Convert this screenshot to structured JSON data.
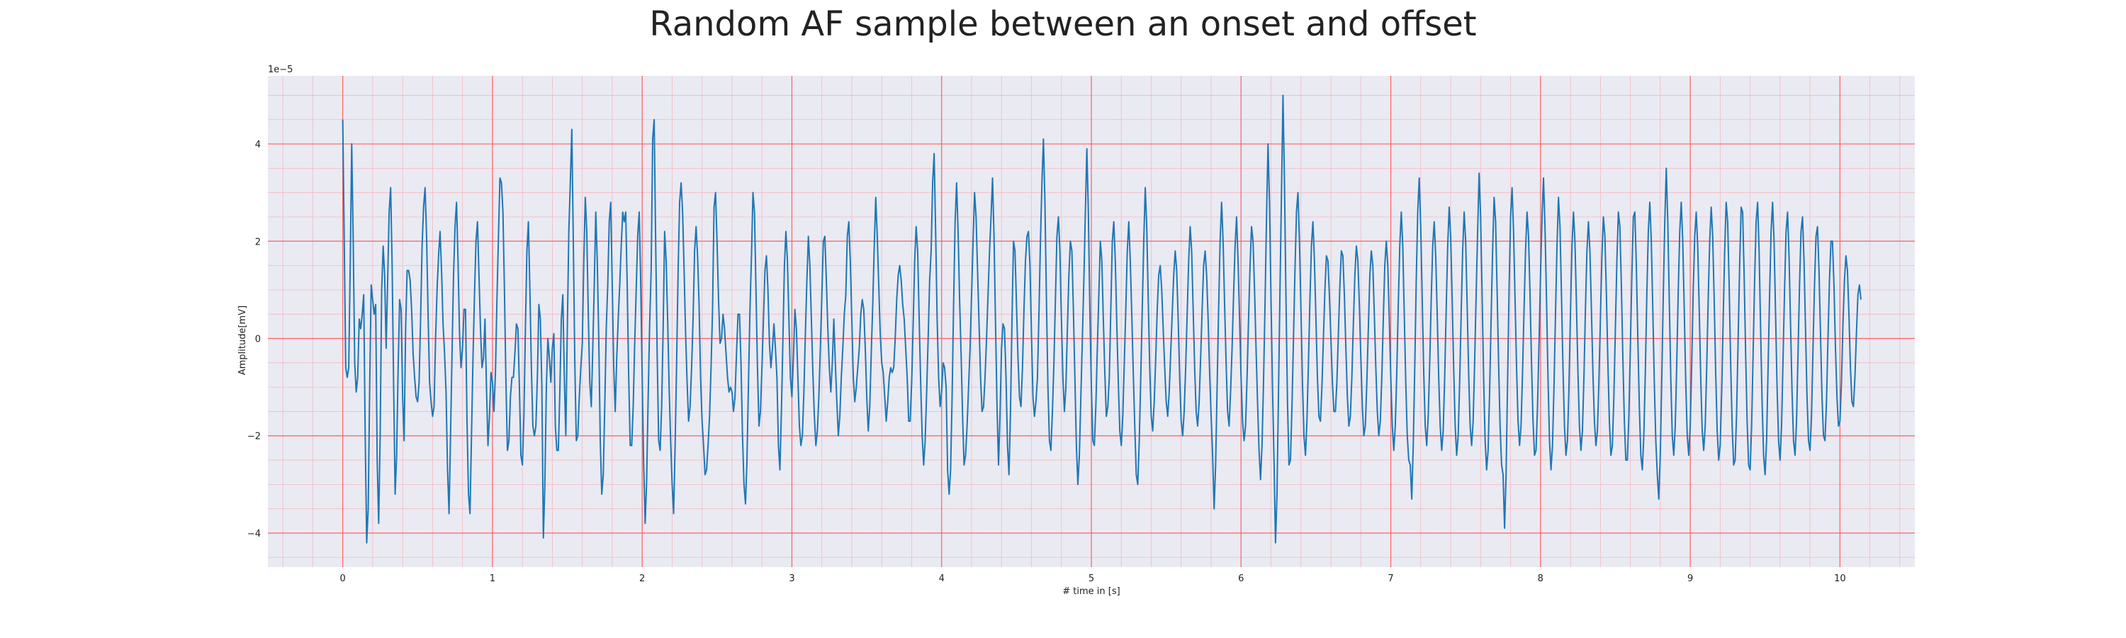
{
  "chart_data": {
    "type": "line",
    "title": "Random AF sample between an onset and offset",
    "xlabel": "# time in [s]",
    "ylabel": "Amplitude[mV]",
    "y_offset_label": "1e−5",
    "xlim": [
      -0.5,
      10.5
    ],
    "ylim": [
      -4.7,
      5.4
    ],
    "x_ticks": [
      0,
      1,
      2,
      3,
      4,
      5,
      6,
      7,
      8,
      9,
      10
    ],
    "x_tick_labels": [
      "0",
      "1",
      "2",
      "3",
      "4",
      "5",
      "6",
      "7",
      "8",
      "9",
      "10"
    ],
    "y_ticks": [
      -4,
      -2,
      0,
      2,
      4
    ],
    "y_tick_labels": [
      "−4",
      "−2",
      "0",
      "2",
      "4"
    ],
    "grid": true,
    "minor_grid": true,
    "colors": {
      "background": "#eaeaf2",
      "line": "#1f77b4",
      "major_grid": "#ff6060",
      "minor_grid": "#f4b8c0"
    },
    "series": [
      {
        "x_start": 0.0,
        "x_step": 0.01,
        "values": [
          4.5,
          2.0,
          -0.6,
          -0.8,
          -0.6,
          1.5,
          4.0,
          2.0,
          -0.5,
          -1.1,
          -0.8,
          0.4,
          0.2,
          0.5,
          0.9,
          -2.0,
          -4.2,
          -3.5,
          -1.0,
          1.1,
          0.8,
          0.5,
          0.7,
          -2.5,
          -3.8,
          -2.0,
          1.0,
          1.9,
          1.3,
          -0.2,
          1.2,
          2.6,
          3.1,
          1.5,
          -1.0,
          -3.2,
          -2.4,
          -0.6,
          0.8,
          0.6,
          -1.2,
          -2.1,
          0.2,
          1.4,
          1.4,
          1.2,
          0.6,
          -0.3,
          -0.8,
          -1.2,
          -1.3,
          -0.9,
          0.4,
          1.9,
          2.7,
          3.1,
          2.1,
          0.5,
          -0.9,
          -1.3,
          -1.6,
          -1.4,
          0.0,
          1.0,
          1.7,
          2.2,
          1.4,
          0.3,
          -0.3,
          -1.1,
          -2.7,
          -3.6,
          -2.0,
          -0.3,
          1.3,
          2.3,
          2.8,
          1.6,
          0.1,
          -0.6,
          -0.2,
          0.6,
          0.6,
          -1.7,
          -3.2,
          -3.6,
          -2.0,
          -0.4,
          0.9,
          2.0,
          2.4,
          1.3,
          0.2,
          -0.6,
          -0.4,
          0.4,
          -1.0,
          -2.2,
          -1.6,
          -0.7,
          -0.9,
          -1.5,
          -0.7,
          0.8,
          2.1,
          3.3,
          3.2,
          2.6,
          1.0,
          -0.9,
          -2.3,
          -2.1,
          -1.2,
          -0.8,
          -0.8,
          -0.3,
          0.3,
          0.2,
          -1.0,
          -2.4,
          -2.6,
          -1.6,
          0.2,
          1.8,
          2.4,
          1.0,
          -0.6,
          -1.8,
          -2.0,
          -1.8,
          -0.8,
          0.7,
          0.4,
          -1.0,
          -4.1,
          -3.0,
          -1.0,
          0.0,
          -0.4,
          -0.9,
          -0.2,
          0.1,
          -1.8,
          -2.3,
          -2.3,
          -1.1,
          0.4,
          0.9,
          -0.8,
          -2.0,
          0.2,
          2.2,
          3.2,
          4.3,
          2.0,
          -0.5,
          -2.1,
          -2.0,
          -1.2,
          -0.6,
          -0.1,
          1.6,
          2.9,
          2.2,
          0.5,
          -0.9,
          -1.4,
          -0.2,
          1.1,
          2.6,
          1.6,
          0.0,
          -2.1,
          -3.2,
          -2.8,
          -1.4,
          0.2,
          1.1,
          2.4,
          2.8,
          1.1,
          -0.6,
          -1.5,
          -0.4,
          0.4,
          1.1,
          1.9,
          2.6,
          2.4,
          2.6,
          1.1,
          -0.8,
          -2.2,
          -2.2,
          -1.4,
          -0.1,
          1.0,
          2.1,
          2.6,
          1.2,
          -0.8,
          -2.6,
          -3.8,
          -2.9,
          -1.2,
          0.3,
          1.4,
          4.1,
          4.5,
          2.0,
          -0.3,
          -2.1,
          -2.3,
          -1.4,
          0.2,
          2.2,
          1.6,
          0.4,
          -1.0,
          -2.1,
          -3.0,
          -3.6,
          -2.2,
          -0.5,
          1.4,
          2.8,
          3.2,
          2.6,
          1.4,
          0.1,
          -0.9,
          -1.7,
          -1.4,
          -0.6,
          0.4,
          1.8,
          2.3,
          1.7,
          0.7,
          -0.8,
          -1.7,
          -2.2,
          -2.8,
          -2.7,
          -2.2,
          -1.6,
          -0.6,
          0.6,
          2.7,
          3.0,
          2.0,
          0.8,
          -0.1,
          0.0,
          0.5,
          0.2,
          -0.3,
          -0.8,
          -1.1,
          -1.0,
          -1.1,
          -1.5,
          -1.2,
          -0.3,
          0.5,
          0.5,
          -0.5,
          -2.0,
          -3.0,
          -3.4,
          -2.5,
          -0.9,
          0.6,
          1.7,
          3.0,
          2.6,
          1.0,
          -0.6,
          -1.8,
          -1.5,
          -0.6,
          0.4,
          1.4,
          1.7,
          1.0,
          -0.1,
          -0.6,
          -0.2,
          0.3,
          -0.2,
          -0.8,
          -2.2,
          -2.7,
          -1.5,
          0.0,
          1.5,
          2.2,
          1.6,
          0.4,
          -0.8,
          -1.2,
          -0.4,
          0.6,
          0.2,
          -0.8,
          -1.8,
          -2.2,
          -2.0,
          -1.1,
          0.1,
          1.2,
          2.1,
          1.5,
          0.4,
          -0.7,
          -1.6,
          -2.2,
          -1.9,
          -1.2,
          -0.2,
          0.9,
          2.0,
          2.1,
          1.2,
          0.2,
          -0.6,
          -1.1,
          -0.5,
          0.4,
          -0.5,
          -1.3,
          -2.0,
          -1.6,
          -0.8,
          -0.2,
          0.5,
          0.9,
          2.1,
          2.4,
          1.6,
          0.4,
          -0.8,
          -1.3,
          -1.0,
          -0.6,
          -0.2,
          0.5,
          0.8,
          0.6,
          -0.2,
          -1.2,
          -1.9,
          -1.4,
          -0.3,
          0.7,
          1.9,
          2.9,
          2.1,
          1.1,
          0.1,
          -0.5,
          -0.7,
          -1.2,
          -1.7,
          -1.3,
          -0.8,
          -0.6,
          -0.7,
          -0.6,
          0.0,
          0.8,
          1.3,
          1.5,
          1.2,
          0.7,
          0.4,
          -0.2,
          -0.8,
          -1.7,
          -1.7,
          -0.9,
          0.3,
          1.6,
          2.3,
          1.8,
          0.4,
          -0.9,
          -2.0,
          -2.6,
          -2.1,
          -1.1,
          0.0,
          1.2,
          1.8,
          3.2,
          3.8,
          2.2,
          0.4,
          -0.8,
          -1.4,
          -1.1,
          -0.5,
          -0.6,
          -1.0,
          -2.7,
          -3.2,
          -2.7,
          -1.2,
          0.7,
          2.4,
          3.2,
          2.2,
          0.8,
          -0.3,
          -1.6,
          -2.6,
          -2.4,
          -1.8,
          -1.0,
          -0.2,
          0.9,
          2.0,
          3.0,
          2.5,
          1.4,
          0.3,
          -0.8,
          -1.5,
          -1.4,
          -0.8,
          0.0,
          0.9,
          1.8,
          2.5,
          3.3,
          2.1,
          0.3,
          -1.4,
          -2.6,
          -1.6,
          -0.2,
          0.3,
          0.2,
          -0.8,
          -2.2,
          -2.8,
          -1.5,
          0.4,
          2.0,
          1.8,
          0.7,
          -0.4,
          -1.2,
          -1.4,
          -0.6,
          0.6,
          1.6,
          2.1,
          2.2,
          1.5,
          0.1,
          -1.2,
          -1.6,
          -1.3,
          -0.8,
          0.5,
          2.0,
          3.2,
          4.1,
          2.8,
          0.8,
          -1.0,
          -2.1,
          -2.3,
          -1.5,
          -0.5,
          0.8,
          2.1,
          2.5,
          1.8,
          0.4,
          -0.8,
          -1.5,
          -1.0,
          0.2,
          1.3,
          2.0,
          1.8,
          0.6,
          -0.8,
          -2.2,
          -3.0,
          -2.4,
          -1.2,
          0.0,
          1.2,
          2.6,
          3.9,
          2.6,
          0.6,
          -1.0,
          -2.1,
          -2.2,
          -1.4,
          -0.2,
          0.9,
          2.0,
          1.6,
          0.4,
          -0.7,
          -1.6,
          -1.4,
          -0.8,
          0.6,
          2.0,
          2.4,
          1.6,
          0.3,
          -0.9,
          -1.9,
          -2.2,
          -1.6,
          -0.5,
          0.6,
          1.8,
          2.4,
          1.6,
          0.5,
          -0.7,
          -1.8,
          -2.8,
          -3.0,
          -2.1,
          -0.8,
          0.6,
          2.0,
          3.1,
          2.3,
          0.8,
          -0.6,
          -1.6,
          -1.9,
          -1.3,
          -0.4,
          0.6,
          1.3,
          1.5,
          1.0,
          0.2,
          -0.6,
          -1.3,
          -1.6,
          -1.1,
          -0.3,
          0.5,
          1.3,
          1.8,
          1.4,
          0.4,
          -0.8,
          -1.7,
          -2.0,
          -1.5,
          -0.6,
          0.5,
          1.6,
          2.3,
          1.8,
          0.6,
          -0.6,
          -1.5,
          -1.8,
          -1.3,
          -0.4,
          0.6,
          1.5,
          1.8,
          1.3,
          0.4,
          -0.7,
          -1.6,
          -2.4,
          -3.5,
          -2.6,
          -1.0,
          0.6,
          2.0,
          2.8,
          2.0,
          0.7,
          -0.5,
          -1.5,
          -1.8,
          -1.1,
          -0.2,
          0.9,
          1.9,
          2.5,
          1.6,
          0.4,
          -0.8,
          -1.7,
          -2.1,
          -1.8,
          -0.8,
          0.4,
          1.5,
          2.3,
          2.0,
          1.0,
          -0.2,
          -1.3,
          -2.3,
          -2.9,
          -2.2,
          -0.9,
          0.7,
          2.5,
          4.0,
          2.8,
          0.8,
          -1.0,
          -2.5,
          -4.2,
          -3.2,
          -1.1,
          1.0,
          3.0,
          5.0,
          3.2,
          0.8,
          -1.3,
          -2.6,
          -2.5,
          -1.4,
          0.0,
          1.4,
          2.6,
          3.0,
          2.0,
          0.6,
          -0.9,
          -2.0,
          -2.4,
          -1.7,
          -0.5,
          0.8,
          1.9,
          2.4,
          1.6,
          0.4,
          -0.8,
          -1.6,
          -1.7,
          -1.0,
          0.0,
          1.0,
          1.7,
          1.6,
          0.9,
          0.0,
          -0.9,
          -1.5,
          -1.5,
          -0.9,
          0.1,
          1.1,
          1.8,
          1.7,
          0.9,
          -0.2,
          -1.2,
          -1.8,
          -1.6,
          -0.8,
          0.3,
          1.3,
          1.9,
          1.6,
          0.7,
          -0.4,
          -1.4,
          -2.0,
          -1.8,
          -0.9,
          0.2,
          1.3,
          1.8,
          1.5,
          0.5,
          -0.6,
          -1.5,
          -2.0,
          -1.7,
          -0.8,
          0.4,
          1.5,
          2.0,
          1.5,
          0.4,
          -0.8,
          -1.8,
          -2.3,
          -1.8,
          -0.7,
          0.7,
          1.9,
          2.6,
          1.9,
          0.5,
          -0.9,
          -2.0,
          -2.5,
          -2.6,
          -3.3,
          -2.2,
          -0.6,
          1.2,
          2.6,
          3.3,
          2.3,
          0.8,
          -0.7,
          -1.8,
          -2.2,
          -1.6,
          -0.5,
          0.8,
          1.9,
          2.4,
          1.7,
          0.5,
          -0.8,
          -1.8,
          -2.3,
          -1.9,
          -0.8,
          0.6,
          1.9,
          2.7,
          2.1,
          0.8,
          -0.6,
          -1.8,
          -2.4,
          -2.0,
          -0.9,
          0.5,
          1.8,
          2.6,
          2.0,
          0.7,
          -0.7,
          -1.8,
          -2.2,
          -1.7,
          -0.5,
          0.9,
          2.2,
          3.4,
          2.5,
          0.9,
          -0.8,
          -2.1,
          -2.7,
          -2.3,
          -1.1,
          0.4,
          1.8,
          2.9,
          2.4,
          1.0,
          -0.5,
          -1.8,
          -2.6,
          -2.8,
          -3.9,
          -2.8,
          -0.9,
          1.0,
          2.5,
          3.1,
          2.2,
          0.8,
          -0.6,
          -1.7,
          -2.2,
          -1.8,
          -0.7,
          0.6,
          1.8,
          2.6,
          2.1,
          0.9,
          -0.5,
          -1.7,
          -2.4,
          -2.3,
          -1.4,
          -0.1,
          1.3,
          2.5,
          3.3,
          2.3,
          0.8,
          -0.8,
          -2.1,
          -2.7,
          -2.2,
          -1.0,
          0.5,
          1.9,
          2.9,
          2.3,
          0.9,
          -0.6,
          -1.8,
          -2.4,
          -2.1,
          -1.0,
          0.5,
          1.9,
          2.6,
          2.0,
          0.7,
          -0.7,
          -1.8,
          -2.3,
          -1.9,
          -0.8,
          0.6,
          1.8,
          2.4,
          1.8,
          0.6,
          -0.7,
          -1.7,
          -2.2,
          -1.9,
          -0.9,
          0.4,
          1.7,
          2.5,
          2.1,
          0.9,
          -0.5,
          -1.7,
          -2.4,
          -2.2,
          -1.2,
          0.2,
          1.6,
          2.6,
          2.3,
          1.1,
          -0.4,
          -1.7,
          -2.5,
          -2.5,
          -1.6,
          -0.2,
          1.3,
          2.5,
          2.6,
          1.5,
          0.0,
          -1.4,
          -2.4,
          -2.7,
          -2.0,
          -0.7,
          0.9,
          2.2,
          2.8,
          2.0,
          0.6,
          -0.9,
          -2.1,
          -2.8,
          -3.3,
          -2.4,
          -0.8,
          0.9,
          2.4,
          3.5,
          2.4,
          0.8,
          -0.8,
          -2.0,
          -2.4,
          -1.8,
          -0.5,
          1.0,
          2.2,
          2.8,
          2.0,
          0.6,
          -0.9,
          -2.0,
          -2.4,
          -1.8,
          -0.5,
          1.0,
          2.1,
          2.6,
          1.9,
          0.6,
          -0.8,
          -1.9,
          -2.3,
          -1.8,
          -0.6,
          0.8,
          2.0,
          2.7,
          2.1,
          0.8,
          -0.7,
          -1.9,
          -2.5,
          -2.2,
          -1.1,
          0.4,
          1.8,
          2.8,
          2.4,
          1.1,
          -0.5,
          -1.8,
          -2.6,
          -2.5,
          -1.5,
          0.0,
          1.5,
          2.7,
          2.6,
          1.3,
          -0.3,
          -1.7,
          -2.6,
          -2.7,
          -1.8,
          -0.3,
          1.2,
          2.4,
          2.8,
          1.8,
          0.2,
          -1.3,
          -2.4,
          -2.8,
          -2.1,
          -0.6,
          0.9,
          2.2,
          2.8,
          2.0,
          0.5,
          -1.0,
          -2.1,
          -2.5,
          -1.8,
          -0.4,
          1.0,
          2.2,
          2.6,
          1.7,
          0.3,
          -1.1,
          -2.1,
          -2.4,
          -1.7,
          -0.3,
          1.1,
          2.2,
          2.5,
          1.6,
          0.2,
          -1.2,
          -2.1,
          -2.3,
          -1.6,
          -0.2,
          1.1,
          2.1,
          2.3,
          1.4,
          0.1,
          -1.2,
          -2.0,
          -2.1,
          -1.3,
          0.0,
          1.2,
          2.0,
          2.0,
          1.1,
          -0.2,
          -1.2,
          -1.8,
          -1.7,
          -0.9,
          0.3,
          1.2,
          1.7,
          1.4,
          0.5,
          -0.6,
          -1.3,
          -1.4,
          -0.8,
          0.1,
          0.9,
          1.1,
          0.8
        ]
      }
    ]
  }
}
